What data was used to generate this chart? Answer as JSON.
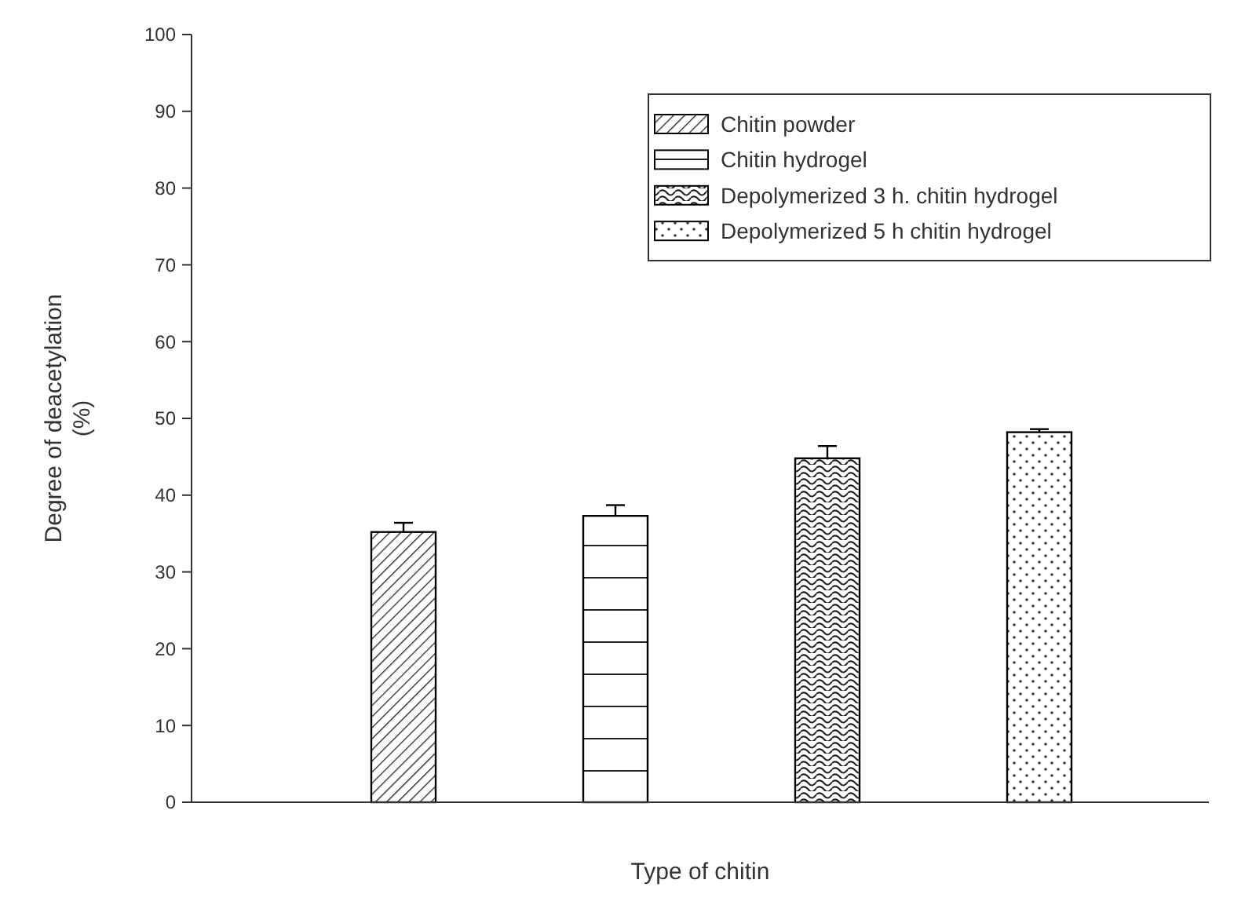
{
  "chart_data": {
    "type": "bar",
    "xlabel": "Type of chitin",
    "ylabel": "Degree of deacetylation\n(%)",
    "categories": [
      null,
      null,
      null,
      null
    ],
    "series": [
      {
        "name": "Chitin powder",
        "color": "#000000",
        "values": [
          35.2,
          null,
          null,
          null
        ],
        "errors": [
          [
            35.2,
            36.4
          ],
          null,
          null,
          null
        ]
      },
      {
        "name": "Chitin hydrogel",
        "color": "#000000",
        "values": [
          null,
          37.3,
          null,
          null
        ],
        "errors": [
          null,
          [
            37.3,
            38.7
          ],
          null,
          null
        ]
      },
      {
        "name": "Depolymerized 3 h. chitin hydrogel",
        "color": "#000000",
        "values": [
          null,
          null,
          44.8,
          null
        ],
        "errors": [
          null,
          null,
          [
            44.8,
            46.4
          ],
          null
        ]
      },
      {
        "name": "Depolymerized 5 h chitin hydrogel",
        "color": "#000000",
        "values": [
          null,
          null,
          null,
          48.2
        ],
        "errors": [
          null,
          null,
          null,
          [
            48.2,
            48.6
          ]
        ]
      }
    ],
    "ylim": [
      0,
      100
    ],
    "yticks": [
      0,
      10,
      20,
      30,
      40,
      50,
      60,
      70,
      80,
      90,
      100
    ],
    "legend": "top right"
  }
}
